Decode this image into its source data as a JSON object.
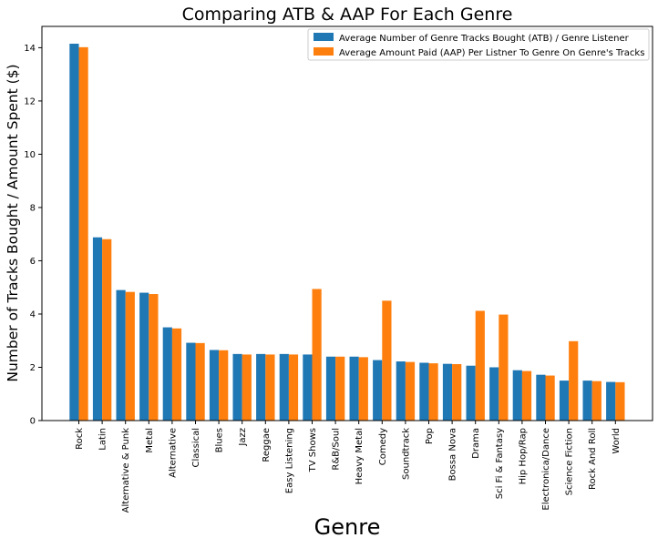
{
  "chart_data": {
    "type": "bar",
    "title": "Comparing ATB & AAP For Each Genre",
    "xlabel": "Genre",
    "ylabel": "Number of Tracks Bought / Amount Spent ($)",
    "ylim": [
      0,
      14.8
    ],
    "yticks": [
      0,
      2,
      4,
      6,
      8,
      10,
      12,
      14
    ],
    "grid": false,
    "legend_position": "top-right",
    "categories": [
      "Rock",
      "Latin",
      "Alternative & Punk",
      "Metal",
      "Alternative",
      "Classical",
      "Blues",
      "Jazz",
      "Reggae",
      "Easy Listening",
      "TV Shows",
      "R&B/Soul",
      "Heavy Metal",
      "Comedy",
      "Soundtrack",
      "Pop",
      "Bossa Nova",
      "Drama",
      "Sci Fi & Fantasy",
      "Hip Hop/Rap",
      "Electronica/Dance",
      "Science Fiction",
      "Rock And Roll",
      "World"
    ],
    "series": [
      {
        "name": "Average Number of Genre Tracks Bought (ATB) / Genre Listener",
        "color": "#1f77b4",
        "values": [
          14.15,
          6.88,
          4.9,
          4.8,
          3.5,
          2.92,
          2.65,
          2.5,
          2.5,
          2.5,
          2.48,
          2.4,
          2.4,
          2.27,
          2.22,
          2.17,
          2.13,
          2.06,
          2.0,
          1.89,
          1.72,
          1.5,
          1.5,
          1.45
        ]
      },
      {
        "name": "Average Amount Paid (AAP) Per Listner To Genre On Genre's Tracks",
        "color": "#ff7f0e",
        "values": [
          14.02,
          6.81,
          4.83,
          4.75,
          3.46,
          2.91,
          2.64,
          2.48,
          2.48,
          2.48,
          4.94,
          2.4,
          2.38,
          4.5,
          2.2,
          2.15,
          2.12,
          4.12,
          3.98,
          1.86,
          1.69,
          2.98,
          1.48,
          1.44
        ]
      }
    ]
  }
}
